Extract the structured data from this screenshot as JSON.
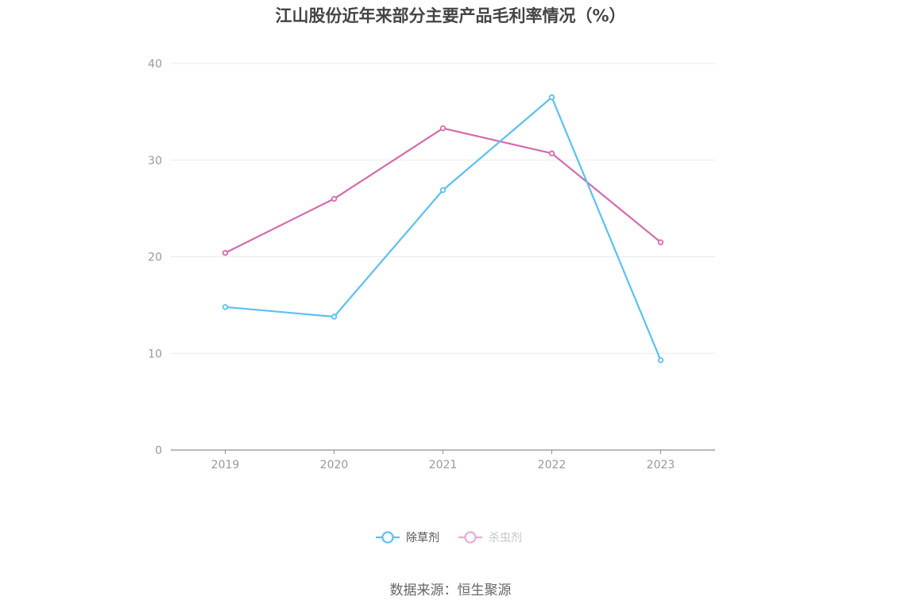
{
  "chart_data": {
    "type": "line",
    "title": "江山股份近年来部分主要产品毛利率情况（%）",
    "categories": [
      "2019",
      "2020",
      "2021",
      "2022",
      "2023"
    ],
    "ylim": [
      0,
      40
    ],
    "yticks": [
      0,
      10,
      20,
      30,
      40
    ],
    "grid": true,
    "legend_position": "bottom-center",
    "series": [
      {
        "name": "除草剂",
        "color": "#5bc0f5",
        "values": [
          14.8,
          13.8,
          26.9,
          36.5,
          9.3
        ]
      },
      {
        "name": "杀虫剂",
        "color": "#d46aae",
        "values": [
          20.4,
          26.0,
          33.3,
          30.7,
          21.5
        ]
      }
    ]
  },
  "legend": {
    "inactive_color": "#999999"
  },
  "source": "数据来源：恒生聚源"
}
